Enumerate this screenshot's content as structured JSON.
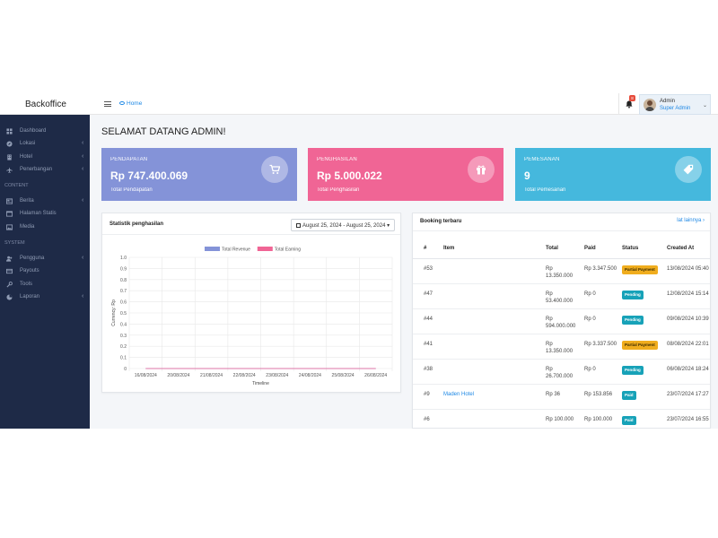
{
  "brand": "Backoffice",
  "topbar": {
    "home_label": "Home",
    "notification_count": "8",
    "user_name": "Admin",
    "user_role": "Super Admin"
  },
  "sidebar": {
    "items": [
      {
        "label": "Dashboard",
        "icon": "dashboard-icon",
        "has_children": false
      },
      {
        "label": "Lokasi",
        "icon": "compass-icon",
        "has_children": true
      },
      {
        "label": "Hotel",
        "icon": "building-icon",
        "has_children": true
      },
      {
        "label": "Penerbangan",
        "icon": "plane-icon",
        "has_children": true
      }
    ],
    "section_content": "CONTENT",
    "content_items": [
      {
        "label": "Berita",
        "icon": "news-icon",
        "has_children": true
      },
      {
        "label": "Halaman Statis",
        "icon": "page-icon",
        "has_children": false
      },
      {
        "label": "Media",
        "icon": "image-icon",
        "has_children": false
      }
    ],
    "section_system": "SYSTEM",
    "system_items": [
      {
        "label": "Pengguna",
        "icon": "users-icon",
        "has_children": true
      },
      {
        "label": "Payouts",
        "icon": "card-icon",
        "has_children": false
      },
      {
        "label": "Tools",
        "icon": "wrench-icon",
        "has_children": false
      },
      {
        "label": "Laporan",
        "icon": "chart-pie-icon",
        "has_children": true
      }
    ]
  },
  "page_title": "SELAMAT DATANG ADMIN!",
  "stats": [
    {
      "label": "PENDAPATAN",
      "value": "Rp 747.400.069",
      "sub": "Total Pendapatan",
      "color": "#8493d8",
      "icon": "cart-icon"
    },
    {
      "label": "PENGHASILAN",
      "value": "Rp 5.000.022",
      "sub": "Total Penghasilan",
      "color": "#f06595",
      "icon": "gift-icon"
    },
    {
      "label": "PEMESANAN",
      "value": "9",
      "sub": "Total Pemesanan",
      "color": "#45b8dd",
      "icon": "tag-icon"
    }
  ],
  "earnings_panel": {
    "title": "Statistik penghasilan",
    "date_range": "August 25, 2024 - August 25, 2024"
  },
  "chart_data": {
    "type": "line",
    "legend_position": "top",
    "x": [
      "16/08/2024",
      "20/08/2024",
      "21/08/2024",
      "22/08/2024",
      "23/08/2024",
      "24/08/2024",
      "25/08/2024",
      "26/08/2024"
    ],
    "series": [
      {
        "name": "Total Revenue",
        "color": "#8493d8",
        "values": [
          0,
          0,
          0,
          0,
          0,
          0,
          0,
          0
        ]
      },
      {
        "name": "Total Earning",
        "color": "#f06595",
        "values": [
          0,
          0,
          0,
          0,
          0,
          0,
          0,
          0
        ]
      }
    ],
    "yticks": [
      "1.0",
      "0.9",
      "0.8",
      "0.7",
      "0.6",
      "0.5",
      "0.4",
      "0.3",
      "0.2",
      "0.1",
      "0"
    ],
    "ylim": [
      0,
      1.0
    ],
    "xlabel": "Timeline",
    "ylabel": "Currency: Rp",
    "grid": true
  },
  "bookings_panel": {
    "title": "Booking terbaru",
    "see_all": "lat lainnya",
    "columns": [
      "#",
      "Item",
      "Total",
      "Paid",
      "Status",
      "Created At"
    ],
    "rows": [
      {
        "id": "#53",
        "item": "",
        "total": "Rp 13.350.000",
        "paid": "Rp 3.347.500",
        "status": "Partial Payment",
        "status_color": "#f0ad1e",
        "status_text_color": "#3a2a00",
        "created": "13/08/2024 05:40"
      },
      {
        "id": "#47",
        "item": "",
        "total": "Rp 53.400.000",
        "paid": "Rp 0",
        "status": "Pending",
        "status_color": "#17a2b8",
        "status_text_color": "#ffffff",
        "created": "12/08/2024 15:14"
      },
      {
        "id": "#44",
        "item": "",
        "total": "Rp 594.000.000",
        "paid": "Rp 0",
        "status": "Pending",
        "status_color": "#17a2b8",
        "status_text_color": "#ffffff",
        "created": "09/08/2024 10:39"
      },
      {
        "id": "#41",
        "item": "",
        "total": "Rp 13.350.000",
        "paid": "Rp 3.337.500",
        "status": "Partial Payment",
        "status_color": "#f0ad1e",
        "status_text_color": "#3a2a00",
        "created": "08/08/2024 22:01"
      },
      {
        "id": "#38",
        "item": "",
        "total": "Rp 26.700.000",
        "paid": "Rp 0",
        "status": "Pending",
        "status_color": "#17a2b8",
        "status_text_color": "#ffffff",
        "created": "06/08/2024 18:24"
      },
      {
        "id": "#9",
        "item": "Maden Hotel",
        "total": "Rp 36",
        "paid": "Rp 153.856",
        "status": "Paid",
        "status_color": "#17a2b8",
        "status_text_color": "#ffffff",
        "created": "23/07/2024 17:27"
      },
      {
        "id": "#6",
        "item": "",
        "total": "Rp 100.000",
        "paid": "Rp 100.000",
        "status": "Paid",
        "status_color": "#17a2b8",
        "status_text_color": "#ffffff",
        "created": "23/07/2024 16:55"
      }
    ]
  }
}
